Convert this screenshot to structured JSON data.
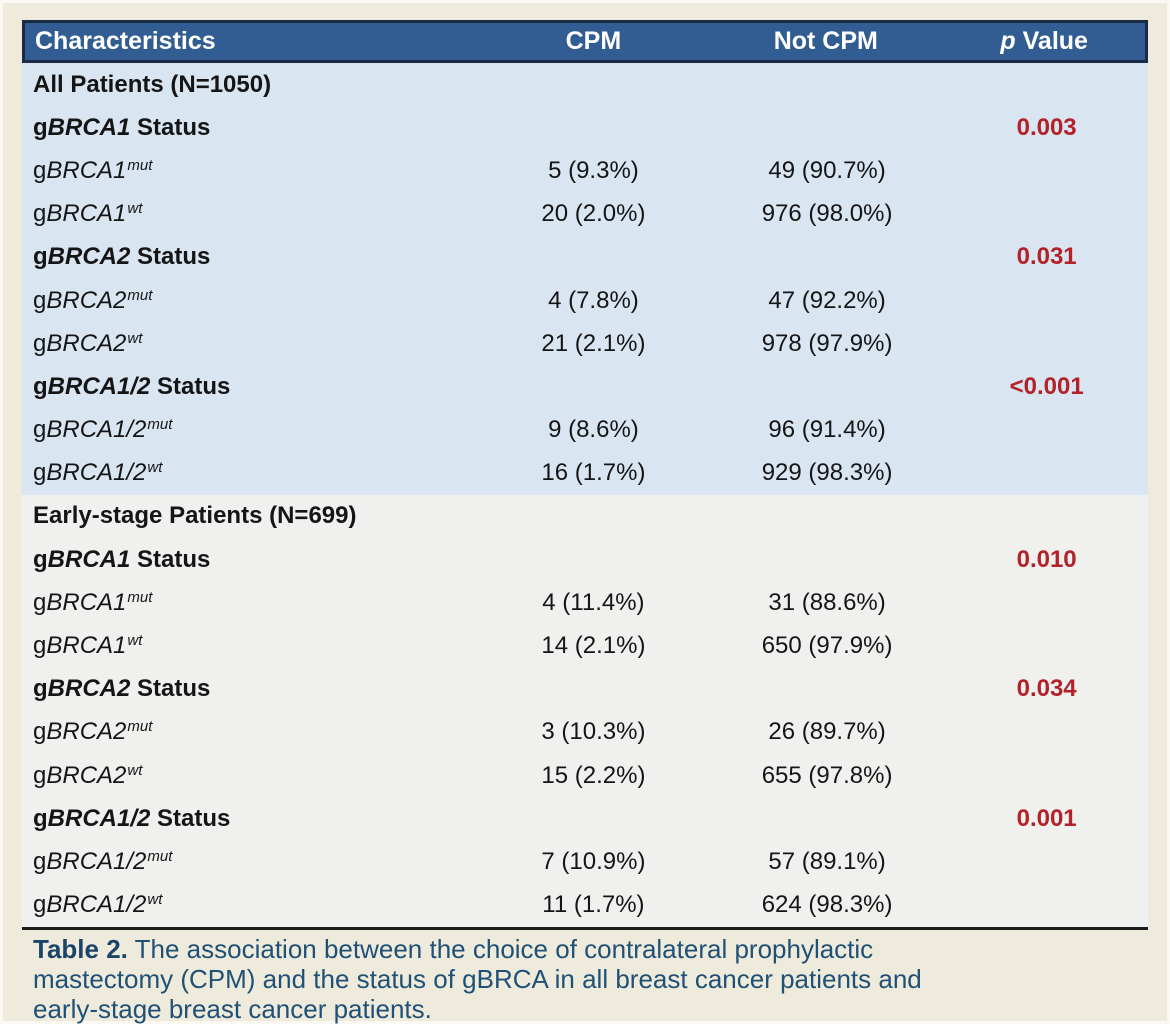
{
  "colors": {
    "page_bg": "#efebdc",
    "header_bg": "#315d93",
    "header_border": "#1b2a45",
    "header_text": "#ffffff",
    "section_all_bg": "#d9e5f1",
    "section_early_bg": "#f0f0ee",
    "body_text": "#151515",
    "p_value_red": "#b22228",
    "rule_black": "#1c1c1c",
    "caption_blue": "#1f5076",
    "caption_label_blue": "#1b4469"
  },
  "table": {
    "columns": [
      {
        "text": "Characteristics"
      },
      {
        "text": "CPM"
      },
      {
        "text": "Not CPM"
      },
      {
        "text": "Value",
        "italic_prefix": "p"
      }
    ],
    "sections": [
      {
        "id": "all-patients",
        "title": "All Patients (N=1050)",
        "bg": "#d9e5f1",
        "rows": [
          {
            "kind": "group",
            "pre": "g",
            "gene": "BRCA1",
            "suffix": " Status",
            "p": "0.003"
          },
          {
            "kind": "data",
            "pre": "g",
            "gene": "BRCA1",
            "sup": "mut",
            "cpm": "5 (9.3%)",
            "not_cpm": "49 (90.7%)"
          },
          {
            "kind": "data",
            "pre": "g",
            "gene": "BRCA1",
            "sup": "wt",
            "cpm": "20 (2.0%)",
            "not_cpm": "976 (98.0%)"
          },
          {
            "kind": "group",
            "pre": "g",
            "gene": "BRCA2",
            "suffix": " Status",
            "p": "0.031"
          },
          {
            "kind": "data",
            "pre": "g",
            "gene": "BRCA2",
            "sup": "mut",
            "cpm": "4 (7.8%)",
            "not_cpm": "47 (92.2%)"
          },
          {
            "kind": "data",
            "pre": "g",
            "gene": "BRCA2",
            "sup": "wt",
            "cpm": "21 (2.1%)",
            "not_cpm": "978 (97.9%)"
          },
          {
            "kind": "group",
            "pre": "g",
            "gene": "BRCA1/2",
            "suffix": " Status",
            "p": "<0.001"
          },
          {
            "kind": "data",
            "pre": "g",
            "gene": "BRCA1/2",
            "sup": "mut",
            "cpm": "9 (8.6%)",
            "not_cpm": "96 (91.4%)"
          },
          {
            "kind": "data",
            "pre": "g",
            "gene": "BRCA1/2",
            "sup": "wt",
            "cpm": "16 (1.7%)",
            "not_cpm": "929 (98.3%)"
          }
        ]
      },
      {
        "id": "early-stage",
        "title": "Early-stage Patients (N=699)",
        "bg": "#f0f0ee",
        "rows": [
          {
            "kind": "group",
            "pre": "g",
            "gene": "BRCA1",
            "suffix": " Status",
            "p": "0.010"
          },
          {
            "kind": "data",
            "pre": "g",
            "gene": "BRCA1",
            "sup": "mut",
            "cpm": "4 (11.4%)",
            "not_cpm": "31 (88.6%)"
          },
          {
            "kind": "data",
            "pre": "g",
            "gene": "BRCA1",
            "sup": "wt",
            "cpm": "14 (2.1%)",
            "not_cpm": "650 (97.9%)"
          },
          {
            "kind": "group",
            "pre": "g",
            "gene": "BRCA2",
            "suffix": " Status",
            "p": "0.034"
          },
          {
            "kind": "data",
            "pre": "g",
            "gene": "BRCA2",
            "sup": "mut",
            "cpm": "3 (10.3%)",
            "not_cpm": "26 (89.7%)"
          },
          {
            "kind": "data",
            "pre": "g",
            "gene": "BRCA2",
            "sup": "wt",
            "cpm": "15 (2.2%)",
            "not_cpm": "655 (97.8%)"
          },
          {
            "kind": "group",
            "pre": "g",
            "gene": "BRCA1/2",
            "suffix": " Status",
            "p": "0.001"
          },
          {
            "kind": "data",
            "pre": "g",
            "gene": "BRCA1/2",
            "sup": "mut",
            "cpm": "7 (10.9%)",
            "not_cpm": "57 (89.1%)"
          },
          {
            "kind": "data",
            "pre": "g",
            "gene": "BRCA1/2",
            "sup": "wt",
            "cpm": "11 (1.7%)",
            "not_cpm": "624 (98.3%)"
          }
        ]
      }
    ]
  },
  "caption": {
    "label": "Table 2.",
    "lines": [
      "The association between the choice of contralateral prophylactic",
      "mastectomy (CPM) and the status of gBRCA in all breast cancer patients and",
      "early-stage breast cancer patients."
    ]
  }
}
